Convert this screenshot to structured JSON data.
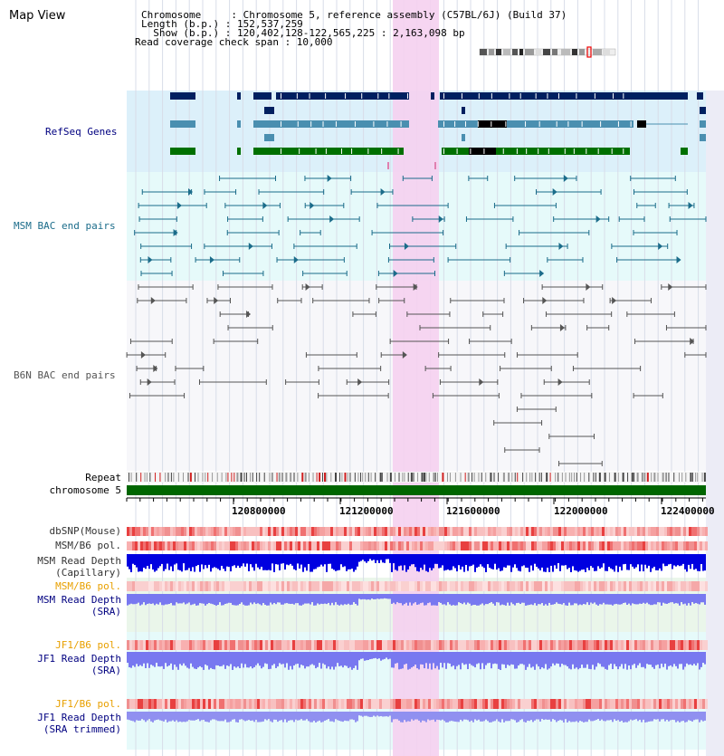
{
  "window": {
    "title": "Map View"
  },
  "info": {
    "chromosome_line": "Chromosome     : Chromosome 5, reference assembly (C57BL/6J) (Build 37)",
    "length_line": "Length (b.p.) : 152,537,259",
    "show_line": "  Show (b.p.) : 120,402,128-122,565,225 : 2,163,098 bp",
    "coverage_line": "Read coverage check span : 10,000"
  },
  "tracks": {
    "refseq": "RefSeq Genes",
    "msm_bac": "MSM BAC end pairs",
    "b6n_bac": "B6N BAC end pairs",
    "repeat": "Repeat",
    "chromosome": "chromosome 5",
    "dbsnp": "dbSNP(Mouse)",
    "msm_b6_pol_1": "MSM/B6 pol.",
    "msm_depth_cap_1": "MSM Read Depth",
    "msm_depth_cap_2": "(Capillary)",
    "msm_b6_pol_2": "MSM/B6 pol.",
    "msm_depth_sra_1": "MSM Read Depth",
    "msm_depth_sra_2": "(SRA)",
    "jf1_b6_pol_1": "JF1/B6 pol.",
    "jf1_depth_sra_1": "JF1 Read Depth",
    "jf1_depth_sra_2": "(SRA)",
    "jf1_b6_pol_2": "JF1/B6 pol.",
    "jf1_depth_trim_1": "JF1 Read Depth",
    "jf1_depth_trim_2": "(SRA trimmed)"
  },
  "axis": {
    "ticks": [
      "120800000",
      "121200000",
      "121600000",
      "122000000",
      "122400000"
    ]
  },
  "colors": {
    "highlight": "#f5d0f0",
    "refseq_bg": "#dcf0fa",
    "msm_bg": "#e6fafa",
    "b6n_bg": "#f7f7fa",
    "gene_dark": "#002060",
    "gene_mid": "#4a8fb0",
    "gene_green": "#007000",
    "msm_line": "#1b6c8a",
    "b6n_line": "#555555",
    "label_navy": "#000080",
    "label_teal": "#1b6c8a",
    "label_orange": "#e8a000",
    "chrom_green": "#006600",
    "snp_red": "#e03030",
    "depth_blue": "#0000e0",
    "depth_light": "#7878f0"
  }
}
